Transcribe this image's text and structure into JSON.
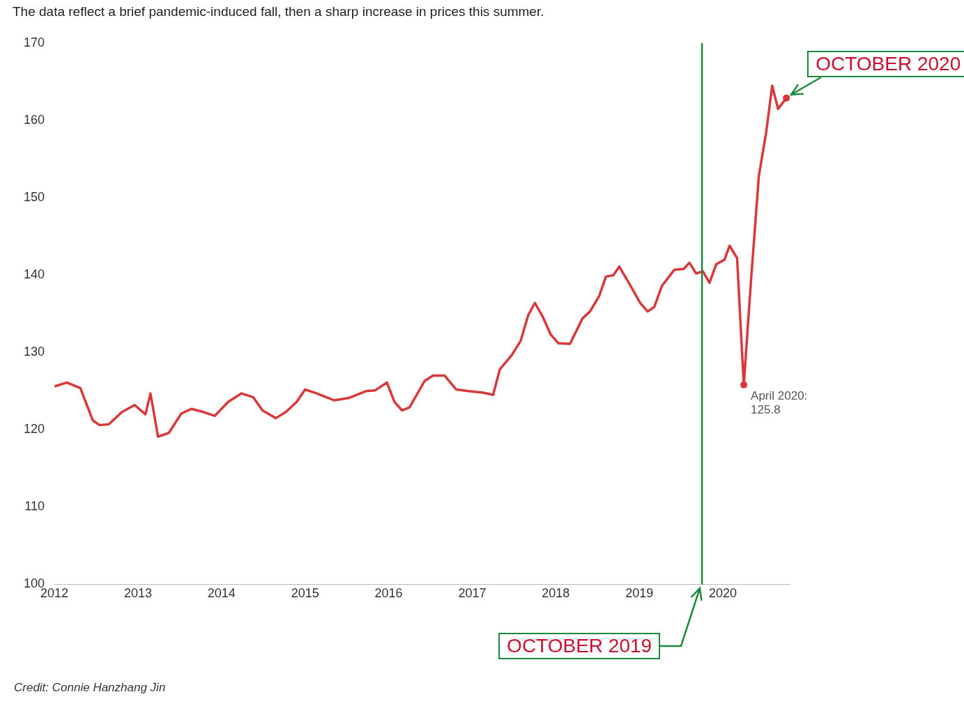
{
  "chart_data": {
    "type": "line",
    "subtitle": "The data reflect a brief pandemic-induced fall, then a sharp increase in prices this summer.",
    "x": [
      2012,
      2012.15,
      2012.31,
      2012.46,
      2012.54,
      2012.65,
      2012.81,
      2012.96,
      2013.09,
      2013.15,
      2013.24,
      2013.37,
      2013.52,
      2013.64,
      2013.78,
      2013.92,
      2014.08,
      2014.24,
      2014.38,
      2014.49,
      2014.65,
      2014.77,
      2014.9,
      2015,
      2015.14,
      2015.35,
      2015.52,
      2015.73,
      2015.84,
      2015.98,
      2016.07,
      2016.16,
      2016.25,
      2016.43,
      2016.53,
      2016.67,
      2016.81,
      2016.95,
      2017.13,
      2017.25,
      2017.33,
      2017.47,
      2017.58,
      2017.67,
      2017.75,
      2017.84,
      2017.94,
      2018.03,
      2018.17,
      2018.32,
      2018.41,
      2018.52,
      2018.6,
      2018.69,
      2018.76,
      2018.88,
      2019.01,
      2019.1,
      2019.18,
      2019.27,
      2019.42,
      2019.53,
      2019.6,
      2019.68,
      2019.76,
      2019.84,
      2019.92,
      2020.02,
      2020.08,
      2020.17,
      2020.25,
      2020.34,
      2020.43,
      2020.52,
      2020.59,
      2020.66,
      2020.76
    ],
    "series": [
      {
        "color": "#d9383a",
        "values": [
          125.6,
          126.1,
          125.4,
          121.2,
          120.6,
          120.7,
          122.3,
          123.2,
          122,
          124.7,
          119.1,
          119.6,
          122.1,
          122.7,
          122.3,
          121.8,
          123.6,
          124.7,
          124.2,
          122.5,
          121.5,
          122.3,
          123.6,
          125.2,
          124.7,
          123.8,
          124.1,
          125,
          125.1,
          126.1,
          123.6,
          122.5,
          122.9,
          126.3,
          127,
          127,
          125.2,
          125,
          124.8,
          124.5,
          127.8,
          129.6,
          131.5,
          134.8,
          136.4,
          134.7,
          132.3,
          131.2,
          131.1,
          134.4,
          135.3,
          137.3,
          139.8,
          140,
          141.1,
          138.9,
          136.4,
          135.3,
          135.9,
          138.6,
          140.7,
          140.8,
          141.6,
          140.2,
          140.5,
          139,
          141.4,
          142,
          143.8,
          142.2,
          125.8,
          139.8,
          152.8,
          158.6,
          164.5,
          161.5,
          162.9
        ]
      }
    ],
    "xlim": [
      2012,
      2020.8
    ],
    "xticks": [
      2012,
      2013,
      2014,
      2015,
      2016,
      2017,
      2018,
      2019,
      2020
    ],
    "ylim": [
      100,
      170
    ],
    "yticks": [
      100,
      110,
      120,
      130,
      140,
      150,
      160,
      170
    ],
    "grid": false,
    "legend": false,
    "marker": "none",
    "line_style": "solid",
    "ref_lines": [
      {
        "axis": "x",
        "value": 2019.75,
        "label": "OCTOBER 2019",
        "color": "#1a8a3a"
      }
    ],
    "annotations": [
      {
        "text": "April 2020: 125.8",
        "x": 2020.25,
        "y": 125.8
      },
      {
        "text": "OCTOBER 2020",
        "x": 2020.76,
        "y": 162.9
      },
      "Credit: Connie Hanzhang Jin"
    ]
  }
}
